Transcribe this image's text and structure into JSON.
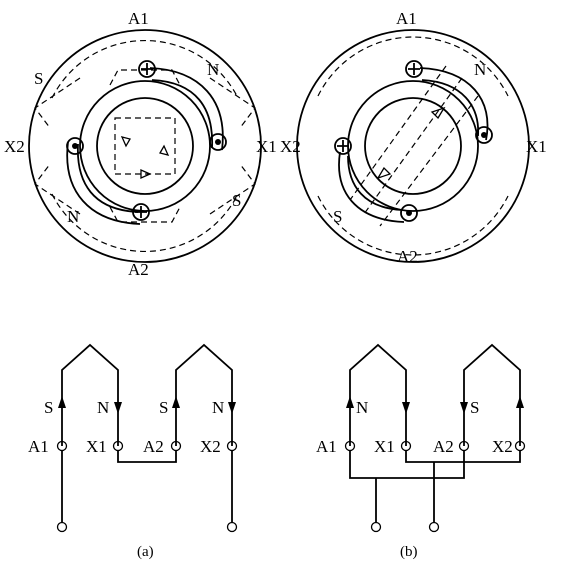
{
  "top_left": {
    "labels": {
      "top": "A1",
      "bottom": "A2",
      "left": "X2",
      "right": "X1"
    },
    "poles": [
      "S",
      "N",
      "N",
      "S"
    ]
  },
  "top_right": {
    "labels": {
      "top": "A1",
      "bottom": "A2",
      "left": "X2",
      "right": "X1"
    },
    "poles": [
      "N",
      "S"
    ]
  },
  "bottom_left": {
    "arrows": [
      "S",
      "N",
      "S",
      "N"
    ],
    "terminals": [
      "A1",
      "X1",
      "A2",
      "X2"
    ],
    "caption": "(a)"
  },
  "bottom_right": {
    "arrows": [
      "N",
      "S"
    ],
    "terminals": [
      "A1",
      "X1",
      "A2",
      "X2"
    ],
    "caption": "(b)"
  }
}
